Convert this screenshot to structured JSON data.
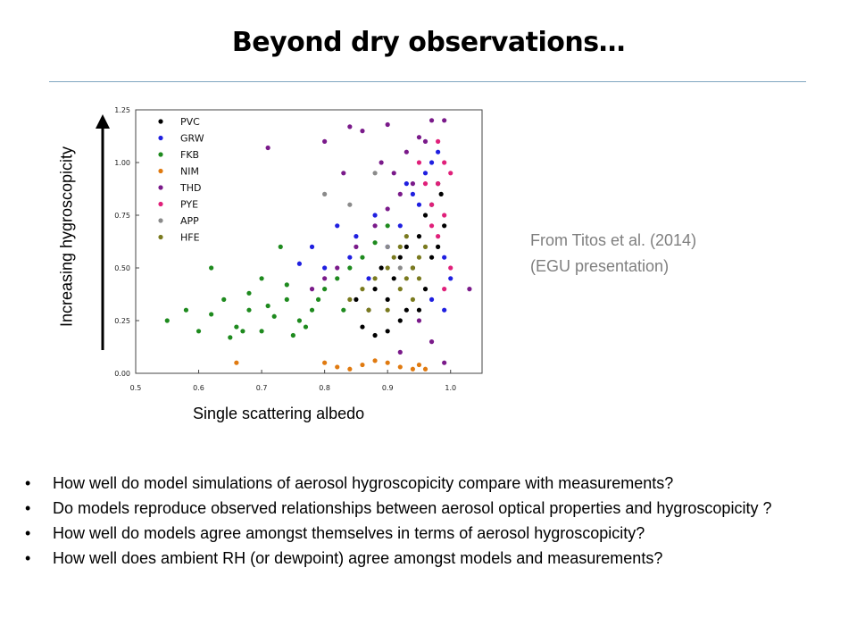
{
  "slide": {
    "title": "Beyond dry observations…",
    "y_arrow_label": "Increasing hygroscopicity",
    "x_label": "Single scattering albedo",
    "source_lines": [
      "From Titos et al. (2014)",
      "(EGU presentation)"
    ],
    "bullet_glyph": "•",
    "bullets": [
      "How well do model simulations of aerosol hygroscopicity compare with measurements?",
      "Do models reproduce observed relationships between aerosol optical properties and hygroscopicity ?",
      "How well do models agree amongst themselves in terms of aerosol hygroscopicity?",
      "How well does ambient RH (or dewpoint) agree amongst models and measurements?"
    ]
  },
  "chart_data": {
    "type": "scatter",
    "title": "",
    "xlabel": "Single scattering albedo",
    "ylabel": "Increasing hygroscopicity",
    "xlim": [
      0.5,
      1.05
    ],
    "ylim": [
      0.0,
      1.25
    ],
    "x_ticks": [
      "0.5",
      "0.6",
      "0.7",
      "0.8",
      "0.9",
      "1.0"
    ],
    "y_ticks": [
      "0.00",
      "0.25",
      "0.50",
      "0.75",
      "1.00",
      "1.25"
    ],
    "legend_position": "top-left",
    "grid": false,
    "series": [
      {
        "name": "PVC",
        "color": "#000000",
        "points": [
          [
            0.86,
            0.22
          ],
          [
            0.87,
            0.3
          ],
          [
            0.88,
            0.4
          ],
          [
            0.89,
            0.5
          ],
          [
            0.9,
            0.35
          ],
          [
            0.91,
            0.45
          ],
          [
            0.92,
            0.55
          ],
          [
            0.93,
            0.6
          ],
          [
            0.94,
            0.5
          ],
          [
            0.95,
            0.65
          ],
          [
            0.96,
            0.75
          ],
          [
            0.97,
            0.8
          ],
          [
            0.98,
            0.9
          ],
          [
            0.985,
            0.85
          ],
          [
            0.99,
            0.7
          ],
          [
            0.9,
            0.2
          ],
          [
            0.93,
            0.3
          ],
          [
            0.96,
            0.4
          ],
          [
            0.88,
            0.18
          ],
          [
            0.95,
            0.3
          ],
          [
            0.97,
            0.55
          ],
          [
            0.98,
            0.6
          ],
          [
            0.92,
            0.25
          ],
          [
            0.85,
            0.35
          ]
        ]
      },
      {
        "name": "GRW",
        "color": "#1f1fe0",
        "points": [
          [
            0.78,
            0.6
          ],
          [
            0.8,
            0.5
          ],
          [
            0.82,
            0.7
          ],
          [
            0.85,
            0.65
          ],
          [
            0.88,
            0.75
          ],
          [
            0.9,
            0.6
          ],
          [
            0.92,
            0.7
          ],
          [
            0.94,
            0.85
          ],
          [
            0.96,
            0.95
          ],
          [
            0.97,
            1.0
          ],
          [
            0.98,
            1.05
          ],
          [
            0.99,
            0.55
          ],
          [
            1.0,
            0.45
          ],
          [
            0.99,
            0.3
          ],
          [
            0.97,
            0.35
          ],
          [
            0.84,
            0.55
          ],
          [
            0.87,
            0.45
          ],
          [
            0.76,
            0.52
          ],
          [
            0.95,
            0.8
          ],
          [
            0.93,
            0.9
          ]
        ]
      },
      {
        "name": "FKB",
        "color": "#1e8a1e",
        "points": [
          [
            0.55,
            0.25
          ],
          [
            0.58,
            0.3
          ],
          [
            0.6,
            0.2
          ],
          [
            0.62,
            0.28
          ],
          [
            0.64,
            0.35
          ],
          [
            0.65,
            0.17
          ],
          [
            0.66,
            0.22
          ],
          [
            0.68,
            0.3
          ],
          [
            0.7,
            0.2
          ],
          [
            0.72,
            0.27
          ],
          [
            0.74,
            0.35
          ],
          [
            0.75,
            0.18
          ],
          [
            0.76,
            0.25
          ],
          [
            0.78,
            0.3
          ],
          [
            0.8,
            0.4
          ],
          [
            0.82,
            0.45
          ],
          [
            0.84,
            0.5
          ],
          [
            0.86,
            0.55
          ],
          [
            0.88,
            0.62
          ],
          [
            0.9,
            0.7
          ],
          [
            0.73,
            0.6
          ],
          [
            0.7,
            0.45
          ],
          [
            0.62,
            0.5
          ],
          [
            0.68,
            0.38
          ],
          [
            0.77,
            0.22
          ],
          [
            0.79,
            0.35
          ],
          [
            0.83,
            0.3
          ],
          [
            0.67,
            0.2
          ],
          [
            0.71,
            0.32
          ],
          [
            0.74,
            0.42
          ]
        ]
      },
      {
        "name": "NIM",
        "color": "#e07a10",
        "points": [
          [
            0.66,
            0.05
          ],
          [
            0.8,
            0.05
          ],
          [
            0.82,
            0.03
          ],
          [
            0.84,
            0.02
          ],
          [
            0.86,
            0.04
          ],
          [
            0.88,
            0.06
          ],
          [
            0.9,
            0.05
          ],
          [
            0.92,
            0.03
          ],
          [
            0.94,
            0.02
          ],
          [
            0.95,
            0.04
          ],
          [
            0.96,
            0.02
          ]
        ]
      },
      {
        "name": "THD",
        "color": "#7a1a8a",
        "points": [
          [
            0.71,
            1.07
          ],
          [
            0.8,
            1.1
          ],
          [
            0.84,
            1.17
          ],
          [
            0.86,
            1.15
          ],
          [
            0.89,
            1.0
          ],
          [
            0.91,
            0.95
          ],
          [
            0.93,
            1.05
          ],
          [
            0.95,
            1.12
          ],
          [
            0.97,
            1.2
          ],
          [
            0.99,
            1.2
          ],
          [
            0.96,
            1.1
          ],
          [
            0.94,
            0.9
          ],
          [
            0.92,
            0.85
          ],
          [
            0.9,
            0.78
          ],
          [
            0.88,
            0.7
          ],
          [
            0.85,
            0.6
          ],
          [
            0.82,
            0.5
          ],
          [
            0.8,
            0.45
          ],
          [
            0.78,
            0.4
          ],
          [
            0.95,
            0.25
          ],
          [
            0.97,
            0.15
          ],
          [
            0.99,
            0.05
          ],
          [
            0.92,
            0.1
          ],
          [
            1.03,
            0.4
          ],
          [
            0.83,
            0.95
          ],
          [
            0.9,
            1.18
          ]
        ]
      },
      {
        "name": "PYE",
        "color": "#e0207a",
        "points": [
          [
            0.97,
            0.8
          ],
          [
            0.98,
            0.9
          ],
          [
            0.99,
            1.0
          ],
          [
            1.0,
            0.95
          ],
          [
            0.99,
            0.75
          ],
          [
            0.98,
            0.65
          ],
          [
            0.97,
            0.7
          ],
          [
            0.96,
            0.9
          ],
          [
            0.95,
            1.0
          ],
          [
            0.98,
            1.1
          ],
          [
            1.0,
            0.5
          ],
          [
            0.99,
            0.4
          ]
        ]
      },
      {
        "name": "APP",
        "color": "#8a8a8a",
        "points": [
          [
            0.8,
            0.85
          ],
          [
            0.84,
            0.8
          ],
          [
            0.88,
            0.95
          ],
          [
            0.9,
            0.6
          ],
          [
            0.92,
            0.5
          ]
        ]
      },
      {
        "name": "HFE",
        "color": "#7a7a1e",
        "points": [
          [
            0.84,
            0.35
          ],
          [
            0.86,
            0.4
          ],
          [
            0.88,
            0.45
          ],
          [
            0.9,
            0.5
          ],
          [
            0.91,
            0.55
          ],
          [
            0.92,
            0.4
          ],
          [
            0.93,
            0.45
          ],
          [
            0.94,
            0.5
          ],
          [
            0.95,
            0.55
          ],
          [
            0.96,
            0.6
          ],
          [
            0.94,
            0.35
          ],
          [
            0.9,
            0.3
          ],
          [
            0.87,
            0.3
          ],
          [
            0.92,
            0.6
          ],
          [
            0.95,
            0.45
          ],
          [
            0.93,
            0.65
          ]
        ]
      }
    ]
  }
}
